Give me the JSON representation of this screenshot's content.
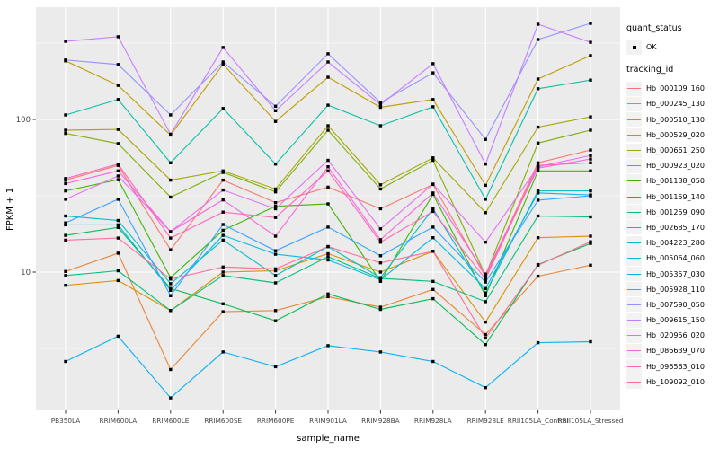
{
  "figure": {
    "background": "#FFFFFF",
    "panel_background": "#EBEBEB",
    "grid_major_color": "#FFFFFF",
    "grid_minor_color": "#FFFFFF",
    "tick_color": "#333333",
    "tick_label_color": "#444444",
    "point_color": "#000000"
  },
  "legend": {
    "quant_title": "quant_status",
    "quant_items": [
      {
        "label": "OK",
        "symbol": "filled-square",
        "color": "#000000"
      }
    ],
    "tracking_title": "tracking_id"
  },
  "chart_data": {
    "type": "line",
    "title": "",
    "xlabel": "sample_name",
    "ylabel": "FPKM + 1",
    "y_scale": "log10",
    "ylim": [
      1.24,
      543
    ],
    "y_major_gridlines": [
      10,
      100
    ],
    "y_minor_gridlines": [
      3.162,
      31.62,
      316.2
    ],
    "grid": true,
    "legend_position": "right",
    "point_symbol": "filled-square",
    "point_legend_label": "OK",
    "categories": [
      "PB350LA",
      "RRIM600LA",
      "RRIM600LE",
      "RRIM600SE",
      "RRIM600PE",
      "RRIM901LA",
      "RRIM928BA",
      "RRIM928LA",
      "RRIM928LE",
      "RRII105LA_Control",
      "RRII105LA_Stressed"
    ],
    "series": [
      {
        "name": "Hb_000109_160",
        "color": "#F8766D",
        "values": [
          40,
          50,
          14,
          40,
          28.5,
          36,
          26,
          37.5,
          9.3,
          52,
          63
        ]
      },
      {
        "name": "Hb_000245_130",
        "color": "#EA8331",
        "values": [
          10.1,
          13.3,
          2.3,
          5.5,
          5.6,
          6.9,
          5.9,
          7.7,
          3.9,
          9.4,
          11.1
        ]
      },
      {
        "name": "Hb_000510_130",
        "color": "#D89000",
        "values": [
          8.2,
          8.8,
          5.6,
          10,
          10.2,
          13.2,
          10,
          13.7,
          4.7,
          16.8,
          17.2
        ]
      },
      {
        "name": "Hb_000529_020",
        "color": "#C09B00",
        "values": [
          242,
          167,
          79,
          230,
          97,
          189,
          120,
          135,
          37,
          184,
          262
        ]
      },
      {
        "name": "Hb_000661_250",
        "color": "#A3A500",
        "values": [
          85,
          86,
          40,
          46,
          35,
          91,
          37.3,
          56,
          24.5,
          89,
          104
        ]
      },
      {
        "name": "Hb_000923_020",
        "color": "#7CAE00",
        "values": [
          81,
          69.5,
          31,
          45,
          33.5,
          85,
          35,
          54,
          9.5,
          70,
          85
        ]
      },
      {
        "name": "Hb_001138_050",
        "color": "#39B600",
        "values": [
          34,
          40.3,
          9.2,
          18.8,
          27,
          28,
          8.7,
          32.3,
          7,
          46,
          46
        ]
      },
      {
        "name": "Hb_001159_140",
        "color": "#00BB4E",
        "values": [
          17.4,
          19.6,
          7.8,
          6.2,
          4.8,
          7.2,
          5.7,
          6.7,
          3.35,
          11.2,
          15.4
        ]
      },
      {
        "name": "Hb_001259_090",
        "color": "#00BF7D",
        "values": [
          9.5,
          10.2,
          5.6,
          9.5,
          8.5,
          12.6,
          9.1,
          8.7,
          6.4,
          23.3,
          23
        ]
      },
      {
        "name": "Hb_002685_170",
        "color": "#00C1A3",
        "values": [
          107,
          135,
          52,
          118,
          51,
          124,
          91,
          121,
          30,
          159,
          181
        ]
      },
      {
        "name": "Hb_004223_280",
        "color": "#00BFC4",
        "values": [
          23.3,
          21.8,
          8.4,
          16.2,
          9.5,
          14.7,
          9.2,
          26,
          7.3,
          34,
          34
        ]
      },
      {
        "name": "Hb_005064_060",
        "color": "#00BAE0",
        "values": [
          20.4,
          20.4,
          7.6,
          17.4,
          13.1,
          12,
          8.9,
          16.8,
          7.8,
          33,
          32
        ]
      },
      {
        "name": "Hb_005357_030",
        "color": "#00B0F6",
        "values": [
          2.6,
          3.8,
          1.5,
          3,
          2.4,
          3.3,
          3,
          2.6,
          1.75,
          3.45,
          3.5
        ]
      },
      {
        "name": "Hb_005928_110",
        "color": "#35A2FF",
        "values": [
          21,
          30,
          7,
          20.5,
          13.8,
          19.7,
          12.8,
          19.7,
          8.6,
          29.6,
          31.6
        ]
      },
      {
        "name": "Hb_007590_050",
        "color": "#9590FF",
        "values": [
          245,
          229,
          107,
          238,
          122,
          269,
          129,
          202,
          74,
          334,
          426
        ]
      },
      {
        "name": "Hb_009615_150",
        "color": "#C77CFF",
        "values": [
          325,
          348,
          80,
          296,
          114,
          238,
          125,
          232,
          51,
          420,
          320
        ]
      },
      {
        "name": "Hb_020956_020",
        "color": "#E76BF3",
        "values": [
          30,
          42.6,
          18.4,
          34.5,
          26,
          54,
          19.2,
          37.7,
          15.7,
          49,
          58
        ]
      },
      {
        "name": "Hb_086639_070",
        "color": "#FA62DB",
        "values": [
          38,
          46,
          18.4,
          29.7,
          17.2,
          49,
          16.3,
          33,
          9.7,
          48,
          55
        ]
      },
      {
        "name": "Hb_096563_010",
        "color": "#FF62BC",
        "values": [
          41,
          51,
          16.7,
          24.7,
          22.8,
          46,
          15.7,
          25,
          9,
          50,
          52
        ]
      },
      {
        "name": "Hb_109092_010",
        "color": "#FF6A98",
        "values": [
          16.2,
          16.7,
          9,
          10.8,
          10.5,
          14.7,
          11.5,
          13.7,
          3.7,
          11.1,
          15.8
        ]
      }
    ]
  }
}
